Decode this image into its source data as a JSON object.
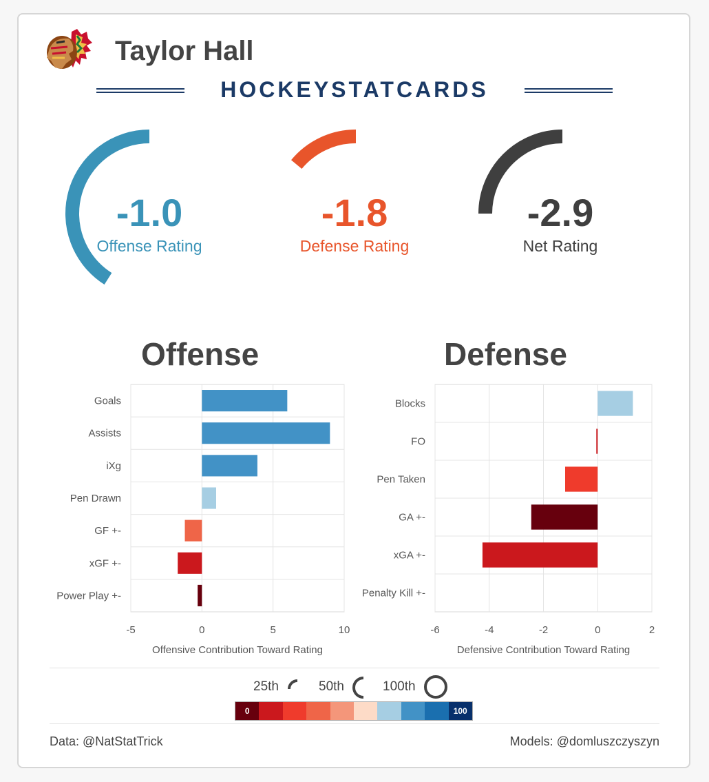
{
  "player": {
    "name": "Taylor Hall"
  },
  "brand": "HOCKEYSTATCARDS",
  "ratings": [
    {
      "value": "-1.0",
      "label": "Offense Rating",
      "color": "#3a93b8",
      "percentile": 41
    },
    {
      "value": "-1.8",
      "label": "Defense Rating",
      "color": "#e8552b",
      "percentile": 14
    },
    {
      "value": "-2.9",
      "label": "Net Rating",
      "color": "#3f3f3f",
      "percentile": 25
    }
  ],
  "sections": {
    "offense": "Offense",
    "defense": "Defense"
  },
  "chart_data": [
    {
      "type": "bar",
      "orientation": "horizontal",
      "title": "Offense",
      "xlabel": "Offensive Contribution Toward Rating",
      "xlim": [
        -5,
        10
      ],
      "xticks": [
        -5,
        0,
        5,
        10
      ],
      "categories": [
        "Goals",
        "Assists",
        "iXg",
        "Pen Drawn",
        "GF +-",
        "xGF +-",
        "Power Play +-"
      ],
      "values": [
        6.0,
        9.0,
        3.9,
        1.0,
        -1.2,
        -1.7,
        -0.3
      ],
      "colors": [
        "#4292c6",
        "#4292c6",
        "#4292c6",
        "#a6cee3",
        "#ef6548",
        "#cb181d",
        "#67000d"
      ]
    },
    {
      "type": "bar",
      "orientation": "horizontal",
      "title": "Defense",
      "xlabel": "Defensive Contribution Toward Rating",
      "xlim": [
        -6,
        2
      ],
      "xticks": [
        -6,
        -4,
        -2,
        0,
        2
      ],
      "categories": [
        "Blocks",
        "FO",
        "Pen Taken",
        "GA +-",
        "xGA +-",
        "Penalty Kill +-"
      ],
      "values": [
        1.3,
        -0.05,
        -1.2,
        -2.45,
        -4.25,
        0
      ],
      "colors": [
        "#a6cee3",
        "#cb181d",
        "#ef3b2c",
        "#67000d",
        "#cb181d",
        "#cb181d"
      ]
    }
  ],
  "legend": {
    "items": [
      "25th",
      "50th",
      "100th"
    ],
    "scale_min": "0",
    "scale_max": "100",
    "scale_colors": [
      "#67000d",
      "#cb181d",
      "#ef3b2c",
      "#ef6548",
      "#f4967a",
      "#fddbc7",
      "#a6cee3",
      "#4292c6",
      "#1a6faf",
      "#08306b"
    ]
  },
  "footer": {
    "left": "Data: @NatStatTrick",
    "right": "Models: @domluszczyszyn"
  }
}
